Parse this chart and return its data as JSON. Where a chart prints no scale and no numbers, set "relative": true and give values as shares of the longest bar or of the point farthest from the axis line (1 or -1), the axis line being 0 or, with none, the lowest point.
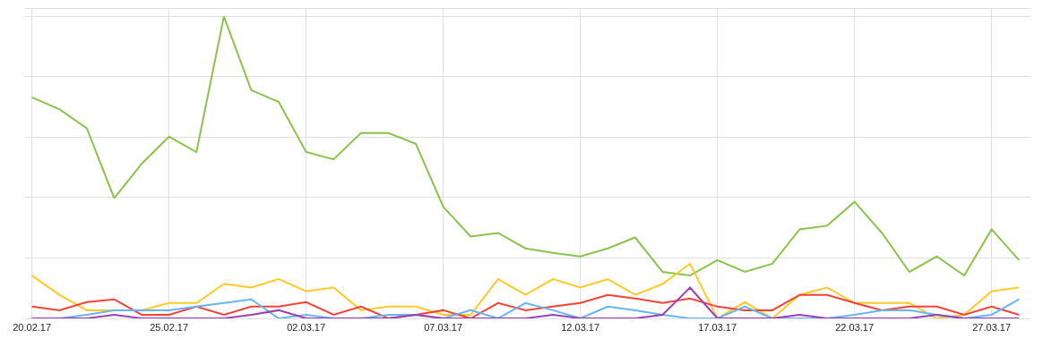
{
  "chart_data": {
    "type": "line",
    "relative": true,
    "grid": true,
    "marker": "none",
    "line_style": "solid",
    "tick_labels": "x",
    "x": [
      "--02-20",
      "--02-21",
      "--02-22",
      "--02-23",
      "--02-24",
      "--02-25",
      "--02-26",
      "--02-27",
      "--02-28",
      "--03-01",
      "--03-02",
      "--03-03",
      "--03-04",
      "--03-05",
      "--03-06",
      "--03-07",
      "--03-08",
      "--03-09",
      "--03-10",
      "--03-11",
      "--03-12",
      "--03-13",
      "--03-14",
      "--03-15",
      "--03-16",
      "--03-17",
      "--03-18",
      "--03-19",
      "--03-20",
      "--03-21",
      "--03-22",
      "--03-23",
      "--03-24",
      "--03-25",
      "--03-26",
      "--03-27",
      "--03-28"
    ],
    "xlim": [
      "--02-19T18:00",
      "--03-28T10:00"
    ],
    "xticks": [
      {
        "value": "--02-20",
        "label": "20.02.17"
      },
      {
        "value": "--02-25",
        "label": "25.02.17"
      },
      {
        "value": "--03-02",
        "label": "02.03.17"
      },
      {
        "value": "--03-07",
        "label": "07.03.17"
      },
      {
        "value": "--03-12",
        "label": "12.03.17"
      },
      {
        "value": "--03-17",
        "label": "17.03.17"
      },
      {
        "value": "--03-22",
        "label": "22.03.17"
      },
      {
        "value": "--03-27",
        "label": "27.03.17"
      }
    ],
    "series": [
      {
        "color": "#8bc34a",
        "values": [
          0.732,
          0.693,
          0.63,
          0.398,
          0.512,
          0.602,
          0.551,
          1,
          0.756,
          0.717,
          0.551,
          0.527,
          0.614,
          0.614,
          0.578,
          0.37,
          0.271,
          0.283,
          0.232,
          0.217,
          0.205,
          0.232,
          0.268,
          0.154,
          0.142,
          0.193,
          0.154,
          0.181,
          0.295,
          0.307,
          0.386,
          0.283,
          0.154,
          0.205,
          0.142,
          0.295,
          0.193
        ]
      },
      {
        "color": "#ffca28",
        "values": [
          0.142,
          0.078,
          0.027,
          0.027,
          0.027,
          0.051,
          0.051,
          0.114,
          0.102,
          0.13,
          0.09,
          0.102,
          0.027,
          0.039,
          0.039,
          0.012,
          0.012,
          0.13,
          0.078,
          0.13,
          0.102,
          0.13,
          0.078,
          0.114,
          0.181,
          0,
          0.054,
          0,
          0.078,
          0.102,
          0.051,
          0.051,
          0.051,
          0,
          0.012,
          0.09,
          0.102
        ]
      },
      {
        "color": "#f44336",
        "values": [
          0.039,
          0.027,
          0.054,
          0.063,
          0.012,
          0.012,
          0.039,
          0.012,
          0.039,
          0.039,
          0.054,
          0.012,
          0.039,
          0,
          0.012,
          0.027,
          0,
          0.051,
          0.027,
          0.039,
          0.051,
          0.078,
          0.066,
          0.051,
          0.066,
          0.039,
          0.027,
          0.027,
          0.078,
          0.078,
          0.051,
          0.027,
          0.039,
          0.039,
          0.012,
          0.039,
          0.012
        ]
      },
      {
        "color": "#64b5f6",
        "values": [
          0,
          0,
          0.012,
          0.027,
          0.027,
          0.027,
          0.039,
          0.051,
          0.063,
          0,
          0.012,
          0,
          0,
          0.012,
          0.012,
          0,
          0.027,
          0,
          0.051,
          0.027,
          0,
          0.039,
          0.027,
          0.012,
          0,
          0,
          0.039,
          0,
          0,
          0,
          0.012,
          0.027,
          0.027,
          0.012,
          0,
          0.012,
          0.063
        ]
      },
      {
        "color": "#9c3fb5",
        "values": [
          0,
          0,
          0,
          0.012,
          0,
          0,
          0,
          0,
          0.012,
          0.027,
          0,
          0,
          0,
          0,
          0.012,
          0,
          0,
          0,
          0,
          0.012,
          0,
          0,
          0,
          0.012,
          0.102,
          0,
          0,
          0,
          0.012,
          0,
          0,
          0,
          0,
          0.012,
          0,
          0,
          0
        ]
      }
    ]
  }
}
